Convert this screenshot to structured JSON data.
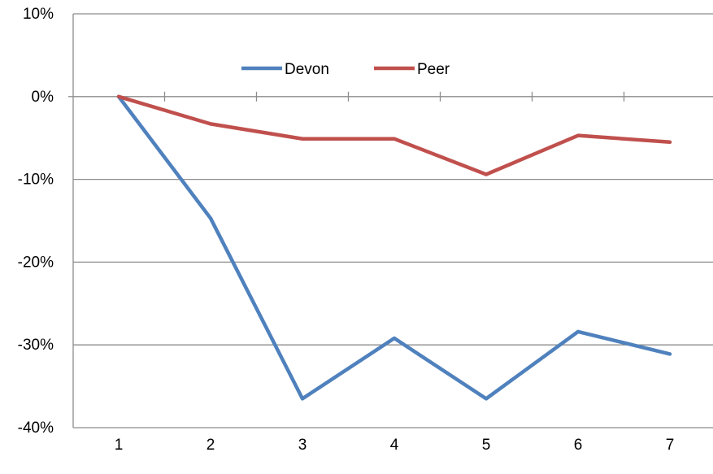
{
  "chart_data": {
    "type": "line",
    "x": [
      1,
      2,
      3,
      4,
      5,
      6,
      7
    ],
    "series": [
      {
        "name": "Devon",
        "color": "#4f81bd",
        "values": [
          0,
          -14.7,
          -36.5,
          -29.2,
          -36.5,
          -28.4,
          -31.1
        ]
      },
      {
        "name": "Peer",
        "color": "#c0504d",
        "values": [
          0,
          -3.3,
          -5.1,
          -5.1,
          -9.4,
          -4.7,
          -5.5
        ]
      }
    ],
    "ylim": [
      -40,
      10
    ],
    "yticks": [
      10,
      0,
      -10,
      -20,
      -30,
      -40
    ],
    "ytick_labels": [
      "10%",
      "0%",
      "-10%",
      "-20%",
      "-30%",
      "-40%"
    ],
    "xtick_labels": [
      "1",
      "2",
      "3",
      "4",
      "5",
      "6",
      "7"
    ],
    "grid": true,
    "legend_position": "top-center",
    "xlabel": "",
    "ylabel": "",
    "title": ""
  }
}
